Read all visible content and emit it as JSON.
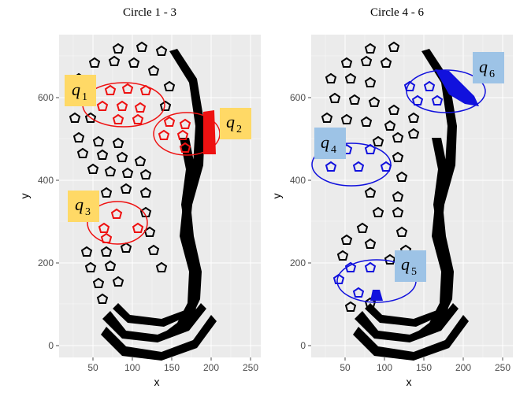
{
  "panels": [
    {
      "title": "Circle 1 - 3",
      "x_label": "x",
      "y_label": "y",
      "x_ticks": [
        "50",
        "100",
        "150",
        "200",
        "250"
      ],
      "y_ticks": [
        "0",
        "200",
        "400",
        "600"
      ],
      "highlight_color": "#ee1111",
      "label_bg": "#ffd966",
      "circles": [
        {
          "label": "q",
          "sub": "1"
        },
        {
          "label": "q",
          "sub": "2"
        },
        {
          "label": "q",
          "sub": "3"
        }
      ]
    },
    {
      "title": "Circle 4 - 6",
      "x_label": "x",
      "y_label": "y",
      "x_ticks": [
        "50",
        "100",
        "150",
        "200",
        "250"
      ],
      "y_ticks": [
        "0",
        "200",
        "400",
        "600"
      ],
      "highlight_color": "#1111dd",
      "label_bg": "#9dc3e6",
      "circles": [
        {
          "label": "q",
          "sub": "4"
        },
        {
          "label": "q",
          "sub": "5"
        },
        {
          "label": "q",
          "sub": "6"
        }
      ]
    }
  ]
}
